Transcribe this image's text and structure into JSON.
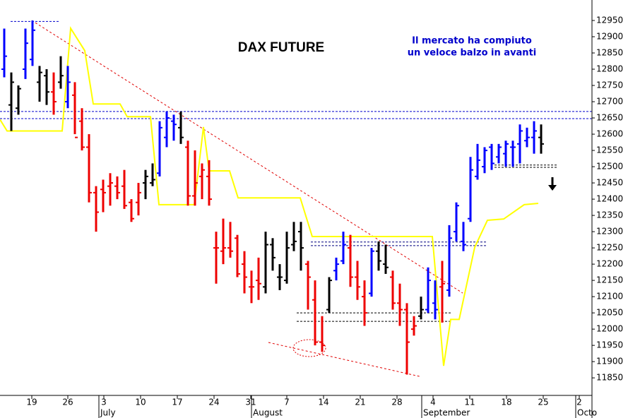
{
  "chart_data": {
    "type": "ohlc",
    "title": "DAX FUTURE",
    "annotations": [
      "Il mercato ha compiuto",
      "un veloce balzo in avanti"
    ],
    "xlim": [
      0,
      83.8
    ],
    "ylim": [
      11796,
      13013
    ],
    "xticks": [
      {
        "value": 4.5,
        "label": "19"
      },
      {
        "value": 9.6,
        "label": "26"
      },
      {
        "value": 14.7,
        "label": "3"
      },
      {
        "value": 19.9,
        "label": "10"
      },
      {
        "value": 25.1,
        "label": "17"
      },
      {
        "value": 30.3,
        "label": "24"
      },
      {
        "value": 35.5,
        "label": "31"
      },
      {
        "value": 40.6,
        "label": "7"
      },
      {
        "value": 45.8,
        "label": "14"
      },
      {
        "value": 51.0,
        "label": "21"
      },
      {
        "value": 56.2,
        "label": "28"
      },
      {
        "value": 61.3,
        "label": "4"
      },
      {
        "value": 66.5,
        "label": "11"
      },
      {
        "value": 71.7,
        "label": "18"
      },
      {
        "value": 76.9,
        "label": "25"
      },
      {
        "value": 82.0,
        "label": "2"
      }
    ],
    "month_ticks": [
      {
        "value": 14.0,
        "label": "July"
      },
      {
        "value": 35.6,
        "label": "August"
      },
      {
        "value": 59.7,
        "label": "September"
      },
      {
        "value": 81.5,
        "label": "Octo"
      }
    ],
    "yticks": [
      11850,
      11900,
      11950,
      12000,
      12050,
      12100,
      12150,
      12200,
      12250,
      12300,
      12350,
      12400,
      12450,
      12500,
      12550,
      12600,
      12650,
      12700,
      12750,
      12800,
      12850,
      12900,
      12950
    ],
    "bars": {
      "x": [
        0.6,
        1.6,
        2.6,
        3.6,
        4.6,
        5.6,
        6.6,
        7.6,
        8.6,
        9.6,
        10.6,
        11.6,
        12.6,
        13.6,
        14.6,
        15.6,
        16.6,
        17.6,
        18.6,
        19.6,
        20.6,
        21.6,
        22.6,
        23.6,
        24.6,
        25.6,
        26.6,
        27.6,
        28.6,
        29.6,
        30.6,
        31.6,
        32.6,
        33.6,
        34.6,
        35.6,
        36.6,
        37.6,
        38.6,
        39.6,
        40.6,
        41.6,
        42.6,
        43.6,
        44.6,
        45.6,
        46.6,
        47.6,
        48.6,
        49.6,
        50.6,
        51.6,
        52.6,
        53.6,
        54.6,
        55.6,
        56.6,
        57.6,
        58.6,
        59.6,
        60.6,
        61.6,
        62.6,
        63.6,
        64.6,
        65.6,
        66.6,
        67.6,
        68.6,
        69.6,
        70.6,
        71.6,
        72.6,
        73.6,
        74.6,
        75.6,
        76.6
      ],
      "open": [
        12800,
        12690,
        12680,
        12800,
        12830,
        12760,
        12780,
        12730,
        12760,
        12700,
        12720,
        12640,
        12560,
        12420,
        12430,
        12440,
        12440,
        12440,
        12390,
        12390,
        12450,
        12450,
        12480,
        12590,
        12640,
        12620,
        12560,
        12410,
        12470,
        12470,
        12250,
        12240,
        12250,
        12280,
        12200,
        12130,
        12150,
        12130,
        12260,
        12160,
        12150,
        12260,
        12300,
        12200,
        12090,
        11960,
        12060,
        12180,
        12210,
        12250,
        12160,
        12100,
        12110,
        12240,
        12200,
        12160,
        12080,
        12060,
        12000,
        12040,
        12060,
        12080,
        12130,
        12120,
        12300,
        12270,
        12340,
        12470,
        12500,
        12560,
        12530,
        12540,
        12560,
        12570,
        12580,
        12590,
        12590
      ],
      "high": [
        12925,
        12790,
        12750,
        12925,
        12950,
        12810,
        12800,
        12790,
        12840,
        12810,
        12760,
        12680,
        12600,
        12440,
        12460,
        12480,
        12470,
        12490,
        12400,
        12450,
        12490,
        12510,
        12640,
        12670,
        12660,
        12670,
        12580,
        12550,
        12510,
        12520,
        12300,
        12340,
        12330,
        12290,
        12240,
        12180,
        12220,
        12300,
        12280,
        12200,
        12300,
        12330,
        12330,
        12210,
        12150,
        12040,
        12160,
        12220,
        12300,
        12290,
        12210,
        12150,
        12250,
        12270,
        12260,
        12180,
        12140,
        12080,
        12040,
        12100,
        12190,
        12150,
        12210,
        12320,
        12390,
        12330,
        12530,
        12570,
        12560,
        12570,
        12570,
        12580,
        12580,
        12630,
        12620,
        12640,
        12630
      ],
      "low": [
        12775,
        12610,
        12660,
        12770,
        12810,
        12700,
        12690,
        12660,
        12740,
        12680,
        12600,
        12550,
        12390,
        12300,
        12360,
        12380,
        12400,
        12370,
        12330,
        12350,
        12400,
        12440,
        12470,
        12560,
        12580,
        12570,
        12380,
        12380,
        12400,
        12380,
        12140,
        12200,
        12220,
        12160,
        12110,
        12080,
        12090,
        12110,
        12180,
        12120,
        12140,
        12240,
        12180,
        12060,
        11950,
        11930,
        12050,
        12150,
        12200,
        12130,
        12090,
        12010,
        12100,
        12180,
        12170,
        12060,
        12010,
        11860,
        11980,
        12030,
        12050,
        12030,
        12020,
        12100,
        12270,
        12240,
        12330,
        12460,
        12480,
        12490,
        12510,
        12500,
        12500,
        12510,
        12560,
        12540,
        12540
      ],
      "close": [
        12840,
        12760,
        12740,
        12880,
        12920,
        12790,
        12730,
        12700,
        12780,
        12760,
        12590,
        12560,
        12420,
        12360,
        12420,
        12450,
        12420,
        12380,
        12340,
        12420,
        12470,
        12460,
        12620,
        12650,
        12630,
        12590,
        12410,
        12450,
        12490,
        12400,
        12250,
        12250,
        12240,
        12170,
        12160,
        12130,
        12140,
        12260,
        12220,
        12160,
        12250,
        12270,
        12250,
        12160,
        11960,
        11950,
        12150,
        12200,
        12260,
        12160,
        12130,
        12050,
        12240,
        12210,
        12190,
        12080,
        12060,
        11960,
        12010,
        12060,
        12150,
        12060,
        12140,
        12280,
        12380,
        12260,
        12490,
        12520,
        12550,
        12510,
        12560,
        12570,
        12560,
        12610,
        12590,
        12610,
        12570
      ],
      "colors": [
        "#0000ff",
        "#000000",
        "#000000",
        "#0000ff",
        "#0000ff",
        "#000000",
        "#000000",
        "#ee0000",
        "#000000",
        "#0000ff",
        "#ee0000",
        "#ee0000",
        "#ee0000",
        "#ee0000",
        "#ee0000",
        "#ee0000",
        "#ee0000",
        "#ee0000",
        "#ee0000",
        "#ee0000",
        "#000000",
        "#000000",
        "#0000ff",
        "#0000ff",
        "#0000ff",
        "#000000",
        "#ee0000",
        "#ee0000",
        "#ee0000",
        "#ee0000",
        "#ee0000",
        "#ee0000",
        "#ee0000",
        "#ee0000",
        "#ee0000",
        "#ee0000",
        "#ee0000",
        "#000000",
        "#000000",
        "#000000",
        "#000000",
        "#000000",
        "#000000",
        "#ee0000",
        "#ee0000",
        "#ee0000",
        "#000000",
        "#0000ff",
        "#0000ff",
        "#ee0000",
        "#ee0000",
        "#ee0000",
        "#0000ff",
        "#000000",
        "#000000",
        "#ee0000",
        "#ee0000",
        "#ee0000",
        "#ee0000",
        "#000000",
        "#0000ff",
        "#0000ff",
        "#ee0000",
        "#0000ff",
        "#0000ff",
        "#0000ff",
        "#0000ff",
        "#0000ff",
        "#0000ff",
        "#0000ff",
        "#0000ff",
        "#0000ff",
        "#0000ff",
        "#0000ff",
        "#0000ff",
        "#0000ff",
        "#000000"
      ]
    },
    "line": {
      "color": "#ffff00",
      "x": [
        0,
        1,
        8.8,
        10,
        12,
        13.2,
        17,
        18,
        21.3,
        22.5,
        27.5,
        28.8,
        29.6,
        32.5,
        33.7,
        42.5,
        44.2,
        61.2,
        62.8,
        63.8,
        65,
        67.2,
        69,
        71.3,
        74.2,
        76.2
      ],
      "values": [
        12645,
        12610,
        12610,
        12926,
        12857,
        12693,
        12693,
        12654,
        12654,
        12383,
        12383,
        12622,
        12487,
        12487,
        12404,
        12404,
        12285,
        12285,
        11887,
        12030,
        12030,
        12252,
        12335,
        12339,
        12383,
        12387
      ]
    },
    "levels": [
      {
        "x": [
          1.5,
          8.5
        ],
        "y": 12947,
        "color": "#0000cc"
      },
      {
        "x": [
          0,
          83.8
        ],
        "y": 12670,
        "color": "#0000cc"
      },
      {
        "x": [
          0,
          83.8
        ],
        "y": 12648,
        "color": "#0000cc"
      },
      {
        "x": [
          44,
          69
        ],
        "y": 12268,
        "color": "#000080"
      },
      {
        "x": [
          44,
          69
        ],
        "y": 12257,
        "color": "#000080"
      },
      {
        "x": [
          42,
          63.8
        ],
        "y": 12050,
        "color": "#000000"
      },
      {
        "x": [
          42,
          63.8
        ],
        "y": 12024,
        "color": "#000000"
      },
      {
        "x": [
          70,
          79
        ],
        "y": 12505,
        "color": "#000000"
      },
      {
        "x": [
          70,
          79
        ],
        "y": 12498,
        "color": "#000000"
      }
    ],
    "trendlines": [
      {
        "x": [
          4.5,
          65.5
        ],
        "y": [
          12950,
          12111
        ],
        "color": "#e00000"
      },
      {
        "x": [
          38,
          59.5
        ],
        "y": [
          11959,
          11854
        ],
        "color": "#e00000"
      }
    ]
  }
}
